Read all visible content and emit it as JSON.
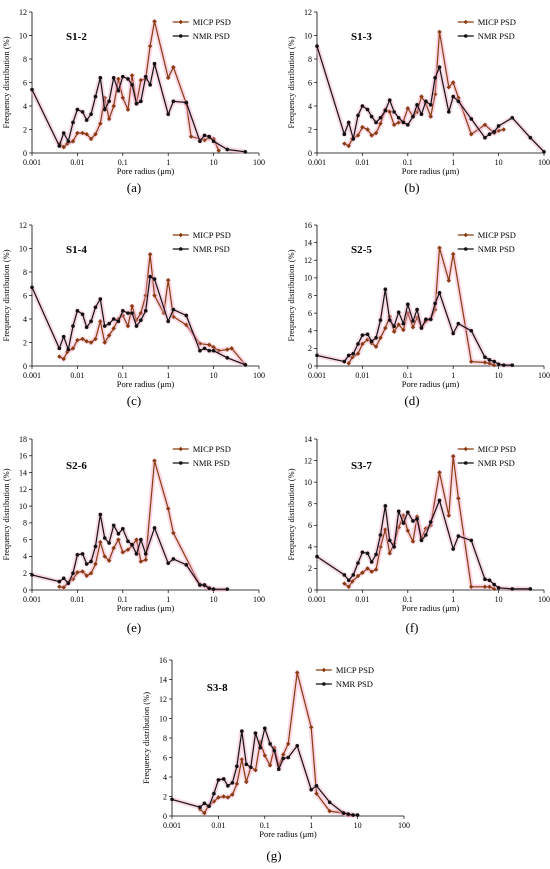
{
  "figure": {
    "captions": [
      "(a)",
      "(b)",
      "(c)",
      "(d)",
      "(e)",
      "(f)",
      "(g)"
    ]
  },
  "legend": {
    "micp": "MICP PSD",
    "nmr": "NMR PSD"
  },
  "colors": {
    "micp": "#8b3a0f",
    "nmr": "#111111",
    "highlight": "#f4a8c8"
  },
  "chart_data": [
    {
      "type": "line",
      "title": "S1-2",
      "xlabel": "Pore radius (μm)",
      "ylabel": "Frequency distribution (%)",
      "xscale": "log",
      "xlim": [
        0.001,
        100
      ],
      "ylim": [
        0,
        12
      ],
      "ytick_step": 2,
      "series": [
        {
          "name": "MICP PSD",
          "x": [
            0.004,
            0.005,
            0.006,
            0.008,
            0.01,
            0.013,
            0.016,
            0.02,
            0.025,
            0.032,
            0.04,
            0.05,
            0.063,
            0.08,
            0.1,
            0.13,
            0.16,
            0.2,
            0.25,
            0.32,
            0.4,
            0.5,
            1.0,
            1.3,
            2.5,
            3.2,
            6.3,
            8.0,
            10,
            13
          ],
          "y": [
            0.8,
            0.5,
            0.8,
            1.0,
            1.7,
            1.7,
            1.6,
            1.2,
            1.6,
            2.5,
            4.7,
            2.9,
            4.0,
            6.3,
            4.7,
            3.7,
            6.6,
            4.2,
            6.2,
            6.3,
            9.1,
            11.2,
            6.4,
            7.3,
            4.2,
            1.4,
            1.1,
            1.3,
            1.2,
            0.2
          ]
        },
        {
          "name": "NMR PSD",
          "x": [
            0.001,
            0.004,
            0.005,
            0.0063,
            0.008,
            0.01,
            0.013,
            0.016,
            0.02,
            0.025,
            0.032,
            0.04,
            0.05,
            0.063,
            0.08,
            0.1,
            0.13,
            0.16,
            0.2,
            0.25,
            0.32,
            0.4,
            0.5,
            1.0,
            1.3,
            2.5,
            5.0,
            6.3,
            8.0,
            10,
            20,
            50
          ],
          "y": [
            5.4,
            0.6,
            1.7,
            1.0,
            2.6,
            3.7,
            3.5,
            2.8,
            3.3,
            4.8,
            6.4,
            3.7,
            4.4,
            6.4,
            5.3,
            6.5,
            6.3,
            5.8,
            4.2,
            4.4,
            6.5,
            5.8,
            7.6,
            3.3,
            4.4,
            4.3,
            1.0,
            1.5,
            1.4,
            1.0,
            0.3,
            0.1
          ]
        }
      ]
    },
    {
      "type": "line",
      "title": "S1-3",
      "xlabel": "Pore radius (μm)",
      "ylabel": "Frequency distribution (%)",
      "xscale": "log",
      "xlim": [
        0.001,
        100
      ],
      "ylim": [
        0,
        12
      ],
      "ytick_step": 2,
      "series": [
        {
          "name": "MICP PSD",
          "x": [
            0.004,
            0.005,
            0.006,
            0.008,
            0.01,
            0.013,
            0.016,
            0.02,
            0.025,
            0.032,
            0.04,
            0.05,
            0.063,
            0.08,
            0.1,
            0.13,
            0.16,
            0.2,
            0.25,
            0.32,
            0.4,
            0.5,
            0.8,
            1.0,
            1.3,
            2.5,
            5.0,
            8.0,
            10,
            13
          ],
          "y": [
            0.8,
            0.6,
            1.2,
            1.5,
            2.2,
            2.0,
            1.5,
            1.7,
            2.5,
            3.7,
            3.5,
            2.4,
            2.6,
            2.7,
            3.8,
            3.1,
            3.5,
            4.8,
            4.2,
            3.1,
            5.0,
            10.3,
            5.6,
            6.0,
            4.7,
            1.6,
            2.4,
            1.7,
            1.9,
            2.0
          ]
        },
        {
          "name": "NMR PSD",
          "x": [
            0.001,
            0.004,
            0.005,
            0.0063,
            0.008,
            0.01,
            0.013,
            0.016,
            0.02,
            0.025,
            0.032,
            0.04,
            0.05,
            0.063,
            0.08,
            0.1,
            0.13,
            0.16,
            0.2,
            0.25,
            0.32,
            0.4,
            0.5,
            0.8,
            1.0,
            1.3,
            2.5,
            5.0,
            6.3,
            8.0,
            10,
            20,
            50,
            100
          ],
          "y": [
            9.1,
            1.6,
            2.6,
            1.2,
            3.2,
            4.0,
            3.7,
            3.1,
            2.6,
            3.0,
            3.6,
            4.5,
            3.5,
            3.0,
            2.6,
            2.4,
            3.1,
            4.1,
            3.3,
            4.4,
            4.1,
            6.4,
            7.3,
            3.5,
            4.8,
            4.4,
            2.9,
            1.3,
            1.6,
            1.8,
            2.3,
            3.0,
            1.3,
            0.1
          ]
        }
      ]
    },
    {
      "type": "line",
      "title": "S1-4",
      "xlabel": "Pore radius (μm)",
      "ylabel": "Frequency distribution (%)",
      "xscale": "log",
      "xlim": [
        0.001,
        100
      ],
      "ylim": [
        0,
        12
      ],
      "ytick_step": 2,
      "series": [
        {
          "name": "MICP PSD",
          "x": [
            0.004,
            0.005,
            0.006,
            0.008,
            0.01,
            0.013,
            0.016,
            0.02,
            0.025,
            0.032,
            0.04,
            0.05,
            0.063,
            0.08,
            0.1,
            0.13,
            0.16,
            0.2,
            0.25,
            0.32,
            0.4,
            0.5,
            0.8,
            1.0,
            1.3,
            2.5,
            5.0,
            8.0,
            10,
            13,
            20,
            25,
            50
          ],
          "y": [
            0.8,
            0.6,
            1.2,
            1.5,
            2.2,
            2.3,
            2.1,
            2.0,
            2.3,
            3.8,
            2.0,
            2.6,
            3.2,
            4.0,
            4.3,
            3.4,
            5.1,
            3.9,
            4.5,
            6.0,
            9.5,
            6.0,
            4.5,
            7.3,
            4.2,
            3.5,
            1.9,
            1.8,
            1.6,
            1.3,
            1.4,
            1.5,
            0.1
          ]
        },
        {
          "name": "NMR PSD",
          "x": [
            0.001,
            0.004,
            0.005,
            0.0063,
            0.008,
            0.01,
            0.013,
            0.016,
            0.02,
            0.025,
            0.032,
            0.04,
            0.05,
            0.063,
            0.08,
            0.1,
            0.13,
            0.16,
            0.2,
            0.25,
            0.32,
            0.4,
            0.5,
            1.0,
            1.3,
            2.5,
            5.0,
            6.3,
            8.0,
            10,
            20,
            50
          ],
          "y": [
            6.7,
            1.5,
            2.5,
            1.4,
            3.4,
            4.7,
            4.4,
            3.3,
            3.8,
            5.0,
            5.7,
            3.4,
            3.6,
            4.0,
            3.8,
            4.7,
            4.5,
            4.5,
            3.4,
            3.9,
            4.7,
            7.6,
            7.4,
            3.8,
            4.8,
            4.3,
            1.3,
            1.5,
            1.3,
            1.3,
            0.7,
            0.1
          ]
        }
      ]
    },
    {
      "type": "line",
      "title": "S2-5",
      "xlabel": "Pore radius (μm)",
      "ylabel": "Frequency distribution (%)",
      "xscale": "log",
      "xlim": [
        0.001,
        100
      ],
      "ylim": [
        0,
        16
      ],
      "ytick_step": 2,
      "series": [
        {
          "name": "MICP PSD",
          "x": [
            0.005,
            0.006,
            0.008,
            0.01,
            0.013,
            0.016,
            0.02,
            0.025,
            0.032,
            0.04,
            0.05,
            0.063,
            0.08,
            0.1,
            0.13,
            0.16,
            0.2,
            0.25,
            0.32,
            0.4,
            0.5,
            0.8,
            1.0,
            2.5,
            5.0,
            6.3,
            8.0
          ],
          "y": [
            0.3,
            1.0,
            1.4,
            2.5,
            3.0,
            2.6,
            2.2,
            3.2,
            4.3,
            5.6,
            3.9,
            4.7,
            4.1,
            6.0,
            4.4,
            5.5,
            4.4,
            5.1,
            5.3,
            6.4,
            13.4,
            9.7,
            12.7,
            0.5,
            0.4,
            0.3,
            0.1
          ]
        },
        {
          "name": "NMR PSD",
          "x": [
            0.001,
            0.004,
            0.005,
            0.0063,
            0.008,
            0.01,
            0.013,
            0.016,
            0.02,
            0.025,
            0.032,
            0.04,
            0.05,
            0.063,
            0.08,
            0.1,
            0.13,
            0.16,
            0.2,
            0.25,
            0.32,
            0.4,
            0.5,
            1.0,
            1.3,
            2.5,
            5.0,
            6.3,
            8.0,
            10,
            13,
            20
          ],
          "y": [
            1.2,
            0.5,
            1.2,
            1.4,
            2.5,
            3.5,
            3.6,
            2.8,
            3.2,
            5.2,
            8.7,
            5.2,
            4.5,
            6.1,
            4.8,
            7.0,
            5.1,
            6.4,
            4.3,
            5.3,
            5.3,
            7.1,
            8.3,
            3.7,
            4.8,
            4.0,
            1.0,
            0.7,
            0.5,
            0.2,
            0.1,
            0.1
          ]
        }
      ]
    },
    {
      "type": "line",
      "title": "S2-6",
      "xlabel": "Pore radius (μm)",
      "ylabel": "Frequency distribution (%)",
      "xscale": "log",
      "xlim": [
        0.001,
        100
      ],
      "ylim": [
        0,
        18
      ],
      "ytick_step": 2,
      "series": [
        {
          "name": "MICP PSD",
          "x": [
            0.004,
            0.005,
            0.0063,
            0.008,
            0.01,
            0.013,
            0.016,
            0.02,
            0.025,
            0.032,
            0.04,
            0.05,
            0.063,
            0.08,
            0.1,
            0.13,
            0.16,
            0.2,
            0.25,
            0.32,
            0.5,
            1.0,
            1.3,
            5.0,
            6.3,
            8.0,
            10
          ],
          "y": [
            0.4,
            0.3,
            0.9,
            1.3,
            2.1,
            2.2,
            1.7,
            2.0,
            3.1,
            5.7,
            4.0,
            3.5,
            5.0,
            6.0,
            4.5,
            4.8,
            5.3,
            6.0,
            3.4,
            3.6,
            15.4,
            9.7,
            6.8,
            0.6,
            0.5,
            0.2,
            0.1
          ]
        },
        {
          "name": "NMR PSD",
          "x": [
            0.001,
            0.004,
            0.005,
            0.0063,
            0.008,
            0.01,
            0.013,
            0.016,
            0.02,
            0.025,
            0.032,
            0.04,
            0.05,
            0.063,
            0.08,
            0.1,
            0.13,
            0.16,
            0.2,
            0.25,
            0.32,
            0.5,
            1.0,
            1.3,
            2.5,
            5.0,
            6.3,
            8.0,
            10,
            20
          ],
          "y": [
            1.8,
            1.0,
            1.4,
            0.8,
            2.0,
            4.2,
            4.3,
            3.1,
            3.4,
            5.2,
            9.0,
            6.2,
            5.6,
            7.7,
            6.7,
            7.3,
            5.8,
            5.4,
            4.3,
            6.0,
            4.3,
            7.4,
            3.2,
            3.7,
            3.0,
            0.6,
            0.6,
            0.2,
            0.1,
            0.1
          ]
        }
      ]
    },
    {
      "type": "line",
      "title": "S3-7",
      "xlabel": "Pore radius (μm)",
      "ylabel": "Frequency distribution (%)",
      "xscale": "log",
      "xlim": [
        0.001,
        100
      ],
      "ylim": [
        0,
        14
      ],
      "ytick_step": 2,
      "series": [
        {
          "name": "MICP PSD",
          "x": [
            0.004,
            0.005,
            0.006,
            0.008,
            0.01,
            0.013,
            0.016,
            0.02,
            0.025,
            0.032,
            0.04,
            0.05,
            0.063,
            0.08,
            0.1,
            0.13,
            0.16,
            0.2,
            0.25,
            0.32,
            0.5,
            0.8,
            1.0,
            1.3,
            2.5,
            5.0,
            6.3,
            8.0
          ],
          "y": [
            0.6,
            0.3,
            0.8,
            1.3,
            1.6,
            2.0,
            1.7,
            1.9,
            4.0,
            5.6,
            3.4,
            4.3,
            5.8,
            6.9,
            5.5,
            4.5,
            6.8,
            4.8,
            5.7,
            6.0,
            10.9,
            6.9,
            12.4,
            8.5,
            0.3,
            0.3,
            0.3,
            0.1
          ]
        },
        {
          "name": "NMR PSD",
          "x": [
            0.001,
            0.004,
            0.005,
            0.0063,
            0.008,
            0.01,
            0.013,
            0.016,
            0.02,
            0.025,
            0.032,
            0.04,
            0.05,
            0.063,
            0.08,
            0.1,
            0.13,
            0.16,
            0.2,
            0.25,
            0.32,
            0.5,
            1.0,
            1.3,
            2.5,
            5.0,
            6.3,
            8.0,
            10,
            20,
            50
          ],
          "y": [
            3.1,
            1.4,
            0.9,
            1.4,
            2.5,
            3.5,
            3.4,
            2.6,
            3.3,
            5.1,
            7.8,
            4.6,
            4.0,
            7.3,
            6.2,
            7.2,
            6.4,
            6.6,
            4.6,
            5.1,
            6.3,
            8.3,
            3.8,
            5.0,
            4.6,
            1.0,
            0.9,
            0.5,
            0.2,
            0.1,
            0.1
          ]
        }
      ]
    },
    {
      "type": "line",
      "title": "S3-8",
      "xlabel": "Pore radius (μm)",
      "ylabel": "Frequency distribution (%)",
      "xscale": "log",
      "xlim": [
        0.001,
        100
      ],
      "ylim": [
        0,
        16
      ],
      "ytick_step": 2,
      "series": [
        {
          "name": "MICP PSD",
          "x": [
            0.004,
            0.005,
            0.006,
            0.008,
            0.01,
            0.013,
            0.016,
            0.02,
            0.025,
            0.032,
            0.04,
            0.05,
            0.063,
            0.08,
            0.1,
            0.13,
            0.16,
            0.2,
            0.25,
            0.32,
            0.5,
            1.0,
            1.3,
            2.5,
            5.0,
            6.3,
            8.0
          ],
          "y": [
            0.7,
            0.3,
            1.0,
            1.5,
            1.9,
            2.0,
            1.9,
            2.2,
            3.3,
            5.8,
            3.5,
            5.0,
            4.7,
            7.6,
            6.2,
            5.2,
            7.0,
            5.2,
            6.3,
            7.4,
            14.7,
            9.1,
            2.3,
            0.5,
            0.3,
            0.1,
            0.1
          ]
        },
        {
          "name": "NMR PSD",
          "x": [
            0.001,
            0.004,
            0.005,
            0.0063,
            0.008,
            0.01,
            0.013,
            0.016,
            0.02,
            0.025,
            0.032,
            0.04,
            0.05,
            0.063,
            0.08,
            0.1,
            0.13,
            0.16,
            0.2,
            0.25,
            0.32,
            0.5,
            1.0,
            1.3,
            2.5,
            5.0,
            6.3,
            8.0,
            10
          ],
          "y": [
            1.7,
            0.9,
            1.3,
            1.0,
            2.3,
            3.7,
            3.8,
            3.1,
            3.4,
            5.1,
            8.7,
            5.3,
            5.0,
            8.5,
            7.0,
            9.0,
            7.4,
            6.7,
            4.8,
            5.9,
            6.0,
            7.2,
            2.7,
            3.1,
            1.4,
            0.3,
            0.2,
            0.1,
            0.1
          ]
        }
      ]
    }
  ]
}
